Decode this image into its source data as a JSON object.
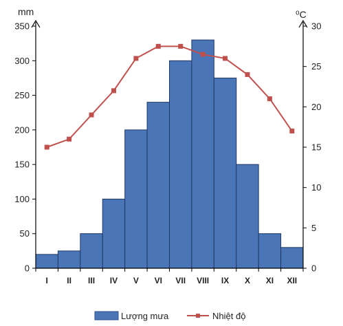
{
  "chart_data": {
    "type": "bar+line",
    "categories": [
      "I",
      "II",
      "III",
      "IV",
      "V",
      "VI",
      "VII",
      "VIII",
      "IX",
      "X",
      "XI",
      "XII"
    ],
    "series": [
      {
        "name": "Lượng mưa",
        "type": "bar",
        "axis": "left",
        "color": "#4a76b8",
        "values": [
          20,
          25,
          50,
          100,
          200,
          240,
          300,
          330,
          275,
          150,
          50,
          30
        ]
      },
      {
        "name": "Nhiệt độ",
        "type": "line",
        "axis": "right",
        "color": "#c0504d",
        "values": [
          15,
          16,
          19,
          22,
          26,
          27.5,
          27.5,
          26.5,
          26,
          24,
          21,
          17
        ]
      }
    ],
    "y_left": {
      "unit": "mm",
      "range": [
        0,
        350
      ],
      "ticks": [
        "0",
        "50",
        "100",
        "150",
        "200",
        "250",
        "300",
        "350"
      ]
    },
    "y_right": {
      "unit": "⁰C",
      "range": [
        0,
        30
      ],
      "ticks": [
        "0",
        "5",
        "10",
        "15",
        "20",
        "25",
        "30"
      ]
    },
    "legend_position": "bottom",
    "grid": false
  }
}
